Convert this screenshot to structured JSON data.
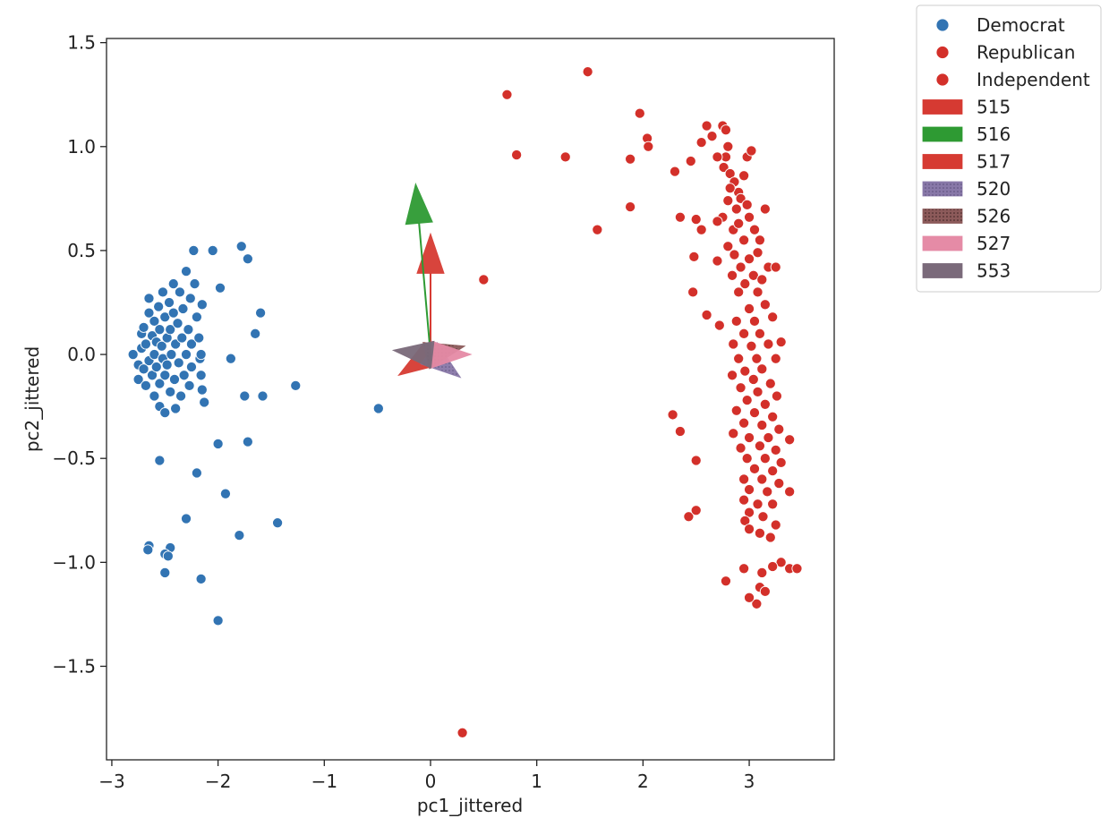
{
  "chart_data": {
    "type": "scatter",
    "xlabel": "pc1_jittered",
    "ylabel": "pc2_jittered",
    "xlim": [
      -3.05,
      3.8
    ],
    "ylim": [
      -1.95,
      1.52
    ],
    "xticks": [
      -3,
      -2,
      -1,
      0,
      1,
      2,
      3
    ],
    "yticks": [
      -1.5,
      -1.0,
      -0.5,
      0.0,
      0.5,
      1.0,
      1.5
    ],
    "xtick_labels": [
      "−3",
      "−2",
      "−1",
      "0",
      "1",
      "2",
      "3"
    ],
    "ytick_labels": [
      "−1.5",
      "−1.0",
      "−0.5",
      "0.0",
      "0.5",
      "1.0",
      "1.5"
    ],
    "grid": false,
    "legend_position": "outside-top-right",
    "series": [
      {
        "name": "Democrat",
        "color": "#3274b3",
        "points": [
          [
            -2.8,
            0.0
          ],
          [
            -2.75,
            -0.05
          ],
          [
            -2.75,
            -0.12
          ],
          [
            -2.72,
            0.1
          ],
          [
            -2.72,
            0.03
          ],
          [
            -2.7,
            -0.07
          ],
          [
            -2.7,
            0.13
          ],
          [
            -2.68,
            0.05
          ],
          [
            -2.68,
            -0.15
          ],
          [
            -2.65,
            0.2
          ],
          [
            -2.65,
            0.27
          ],
          [
            -2.65,
            -0.03
          ],
          [
            -2.62,
            0.09
          ],
          [
            -2.62,
            -0.1
          ],
          [
            -2.6,
            0.16
          ],
          [
            -2.6,
            0.0
          ],
          [
            -2.6,
            -0.2
          ],
          [
            -2.58,
            0.06
          ],
          [
            -2.58,
            -0.06
          ],
          [
            -2.56,
            0.23
          ],
          [
            -2.55,
            0.12
          ],
          [
            -2.55,
            -0.14
          ],
          [
            -2.55,
            -0.25
          ],
          [
            -2.53,
            0.04
          ],
          [
            -2.52,
            0.3
          ],
          [
            -2.52,
            -0.02
          ],
          [
            -2.5,
            0.18
          ],
          [
            -2.5,
            -0.1
          ],
          [
            -2.5,
            -0.28
          ],
          [
            -2.48,
            0.08
          ],
          [
            -2.48,
            -0.05
          ],
          [
            -2.46,
            0.25
          ],
          [
            -2.45,
            0.12
          ],
          [
            -2.45,
            -0.18
          ],
          [
            -2.44,
            0.0
          ],
          [
            -2.42,
            0.34
          ],
          [
            -2.42,
            0.2
          ],
          [
            -2.41,
            -0.12
          ],
          [
            -2.4,
            0.05
          ],
          [
            -2.4,
            -0.26
          ],
          [
            -2.38,
            0.15
          ],
          [
            -2.37,
            -0.04
          ],
          [
            -2.36,
            0.3
          ],
          [
            -2.35,
            -0.2
          ],
          [
            -2.34,
            0.08
          ],
          [
            -2.33,
            0.22
          ],
          [
            -2.32,
            -0.1
          ],
          [
            -2.3,
            0.4
          ],
          [
            -2.3,
            0.0
          ],
          [
            -2.28,
            0.12
          ],
          [
            -2.27,
            -0.15
          ],
          [
            -2.26,
            0.27
          ],
          [
            -2.25,
            0.05
          ],
          [
            -2.25,
            -0.06
          ],
          [
            -2.23,
            0.5
          ],
          [
            -2.22,
            0.34
          ],
          [
            -2.2,
            0.18
          ],
          [
            -2.18,
            0.08
          ],
          [
            -2.17,
            -0.02
          ],
          [
            -2.16,
            0.0
          ],
          [
            -2.16,
            -0.1
          ],
          [
            -2.15,
            0.24
          ],
          [
            -2.15,
            -0.17
          ],
          [
            -2.13,
            -0.23
          ],
          [
            -2.05,
            0.5
          ],
          [
            -1.98,
            0.32
          ],
          [
            -1.88,
            -0.02
          ],
          [
            -1.78,
            0.52
          ],
          [
            -1.75,
            -0.2
          ],
          [
            -1.72,
            0.46
          ],
          [
            -1.65,
            0.1
          ],
          [
            -1.6,
            0.2
          ],
          [
            -1.58,
            -0.2
          ],
          [
            -1.27,
            -0.15
          ],
          [
            -0.49,
            -0.26
          ],
          [
            -2.55,
            -0.51
          ],
          [
            -2.2,
            -0.57
          ],
          [
            -2.0,
            -0.43
          ],
          [
            -1.72,
            -0.42
          ],
          [
            -1.93,
            -0.67
          ],
          [
            -2.3,
            -0.79
          ],
          [
            -1.44,
            -0.81
          ],
          [
            -1.8,
            -0.87
          ],
          [
            -2.45,
            -0.93
          ],
          [
            -2.65,
            -0.92
          ],
          [
            -2.66,
            -0.94
          ],
          [
            -2.5,
            -0.96
          ],
          [
            -2.47,
            -0.97
          ],
          [
            -2.5,
            -1.05
          ],
          [
            -2.16,
            -1.08
          ],
          [
            -2.0,
            -1.28
          ]
        ]
      },
      {
        "name": "Republican",
        "color": "#d3302a",
        "points": [
          [
            2.55,
            1.02
          ],
          [
            2.6,
            1.1
          ],
          [
            2.65,
            1.05
          ],
          [
            2.75,
            1.1
          ],
          [
            2.78,
            1.08
          ],
          [
            2.8,
            1.0
          ],
          [
            2.78,
            0.95
          ],
          [
            2.76,
            0.9
          ],
          [
            2.82,
            0.87
          ],
          [
            2.86,
            0.83
          ],
          [
            2.9,
            0.78
          ],
          [
            2.95,
            0.86
          ],
          [
            2.98,
            0.95
          ],
          [
            3.02,
            0.98
          ],
          [
            2.92,
            0.75
          ],
          [
            2.88,
            0.7
          ],
          [
            2.8,
            0.74
          ],
          [
            2.75,
            0.66
          ],
          [
            2.7,
            0.64
          ],
          [
            2.85,
            0.6
          ],
          [
            2.9,
            0.63
          ],
          [
            3.0,
            0.66
          ],
          [
            3.05,
            0.6
          ],
          [
            3.15,
            0.7
          ],
          [
            2.95,
            0.55
          ],
          [
            3.1,
            0.55
          ],
          [
            2.8,
            0.52
          ],
          [
            2.86,
            0.48
          ],
          [
            3.0,
            0.46
          ],
          [
            3.08,
            0.49
          ],
          [
            2.92,
            0.42
          ],
          [
            3.18,
            0.42
          ],
          [
            2.84,
            0.38
          ],
          [
            3.04,
            0.38
          ],
          [
            2.96,
            0.34
          ],
          [
            3.12,
            0.36
          ],
          [
            3.25,
            0.42
          ],
          [
            2.9,
            0.3
          ],
          [
            3.08,
            0.3
          ],
          [
            3.0,
            0.22
          ],
          [
            3.15,
            0.24
          ],
          [
            2.88,
            0.16
          ],
          [
            3.05,
            0.16
          ],
          [
            3.22,
            0.18
          ],
          [
            2.95,
            0.1
          ],
          [
            3.1,
            0.1
          ],
          [
            2.85,
            0.05
          ],
          [
            3.02,
            0.04
          ],
          [
            3.18,
            0.05
          ],
          [
            3.3,
            0.06
          ],
          [
            2.9,
            -0.02
          ],
          [
            3.07,
            -0.02
          ],
          [
            3.25,
            -0.02
          ],
          [
            2.96,
            -0.08
          ],
          [
            3.12,
            -0.07
          ],
          [
            2.84,
            -0.1
          ],
          [
            3.04,
            -0.12
          ],
          [
            3.2,
            -0.14
          ],
          [
            2.92,
            -0.16
          ],
          [
            3.08,
            -0.18
          ],
          [
            3.26,
            -0.2
          ],
          [
            2.98,
            -0.22
          ],
          [
            3.15,
            -0.24
          ],
          [
            2.88,
            -0.27
          ],
          [
            3.05,
            -0.28
          ],
          [
            3.22,
            -0.3
          ],
          [
            2.95,
            -0.33
          ],
          [
            3.12,
            -0.34
          ],
          [
            3.28,
            -0.36
          ],
          [
            2.85,
            -0.38
          ],
          [
            3.0,
            -0.4
          ],
          [
            3.18,
            -0.4
          ],
          [
            3.38,
            -0.41
          ],
          [
            2.92,
            -0.45
          ],
          [
            3.1,
            -0.44
          ],
          [
            3.25,
            -0.46
          ],
          [
            2.98,
            -0.5
          ],
          [
            3.15,
            -0.5
          ],
          [
            3.3,
            -0.52
          ],
          [
            3.05,
            -0.55
          ],
          [
            3.22,
            -0.56
          ],
          [
            2.95,
            -0.6
          ],
          [
            3.12,
            -0.6
          ],
          [
            3.28,
            -0.62
          ],
          [
            3.0,
            -0.65
          ],
          [
            3.17,
            -0.66
          ],
          [
            3.38,
            -0.66
          ],
          [
            2.95,
            -0.7
          ],
          [
            3.08,
            -0.72
          ],
          [
            3.22,
            -0.72
          ],
          [
            3.0,
            -0.76
          ],
          [
            3.13,
            -0.78
          ],
          [
            2.96,
            -0.8
          ],
          [
            3.25,
            -0.82
          ],
          [
            3.1,
            -0.86
          ],
          [
            3.0,
            -0.84
          ],
          [
            3.2,
            -0.88
          ],
          [
            3.3,
            -1.0
          ],
          [
            3.38,
            -1.03
          ],
          [
            3.45,
            -1.03
          ],
          [
            3.22,
            -1.02
          ],
          [
            3.12,
            -1.05
          ],
          [
            2.95,
            -1.03
          ],
          [
            2.78,
            -1.09
          ],
          [
            3.1,
            -1.12
          ],
          [
            3.15,
            -1.14
          ],
          [
            3.07,
            -1.2
          ],
          [
            3.0,
            -1.17
          ],
          [
            2.82,
            0.8
          ],
          [
            2.98,
            0.72
          ],
          [
            2.7,
            0.95
          ],
          [
            1.48,
            1.36
          ],
          [
            0.72,
            1.25
          ],
          [
            0.81,
            0.96
          ],
          [
            1.27,
            0.95
          ],
          [
            1.97,
            1.16
          ],
          [
            2.04,
            1.04
          ],
          [
            2.05,
            1.0
          ],
          [
            1.88,
            0.94
          ],
          [
            2.3,
            0.88
          ],
          [
            2.45,
            0.93
          ],
          [
            1.88,
            0.71
          ],
          [
            1.57,
            0.6
          ],
          [
            2.35,
            0.66
          ],
          [
            2.5,
            0.65
          ],
          [
            2.55,
            0.6
          ],
          [
            2.48,
            0.47
          ],
          [
            2.7,
            0.45
          ],
          [
            2.47,
            0.3
          ],
          [
            2.6,
            0.19
          ],
          [
            2.72,
            0.14
          ],
          [
            2.28,
            -0.29
          ],
          [
            2.35,
            -0.37
          ],
          [
            2.5,
            -0.51
          ],
          [
            2.43,
            -0.78
          ],
          [
            2.5,
            -0.75
          ],
          [
            0.5,
            0.36
          ],
          [
            0.3,
            -1.82
          ]
        ]
      }
    ],
    "legend": [
      {
        "label": "Democrat",
        "kind": "marker",
        "color": "#3274b3"
      },
      {
        "label": "Republican",
        "kind": "marker",
        "color": "#d3302a"
      },
      {
        "label": "Independent",
        "kind": "marker",
        "color": "#d3302a"
      },
      {
        "label": "515",
        "kind": "patch",
        "color": "#d63a32",
        "pattern": "solid"
      },
      {
        "label": "516",
        "kind": "patch",
        "color": "#2e9a33",
        "pattern": "solid"
      },
      {
        "label": "517",
        "kind": "patch",
        "color": "#d63a32",
        "pattern": "solid"
      },
      {
        "label": "520",
        "kind": "patch",
        "color": "#8878a8",
        "pattern": "dots"
      },
      {
        "label": "526",
        "kind": "patch",
        "color": "#8c5a5a",
        "pattern": "dots"
      },
      {
        "label": "527",
        "kind": "patch",
        "color": "#e58ba6",
        "pattern": "solid"
      },
      {
        "label": "553",
        "kind": "patch",
        "color": "#7a6a7a",
        "pattern": "solid"
      }
    ],
    "vectors": [
      {
        "id": "515",
        "color": "#d63a32",
        "dx": 0.0,
        "dy": 0.58
      },
      {
        "id": "516",
        "color": "#2e9a33",
        "dx": -0.14,
        "dy": 0.82
      },
      {
        "id": "517",
        "color": "#d63a32",
        "dx": -0.3,
        "dy": -0.1
      },
      {
        "id": "520",
        "color": "#8878a8",
        "dx": 0.28,
        "dy": -0.11
      },
      {
        "id": "526",
        "color": "#8c5a5a",
        "dx": 0.32,
        "dy": 0.04
      },
      {
        "id": "527",
        "color": "#e58ba6",
        "dx": 0.38,
        "dy": 0.0
      },
      {
        "id": "553",
        "color": "#7a6a7a",
        "dx": -0.35,
        "dy": 0.02
      }
    ]
  }
}
